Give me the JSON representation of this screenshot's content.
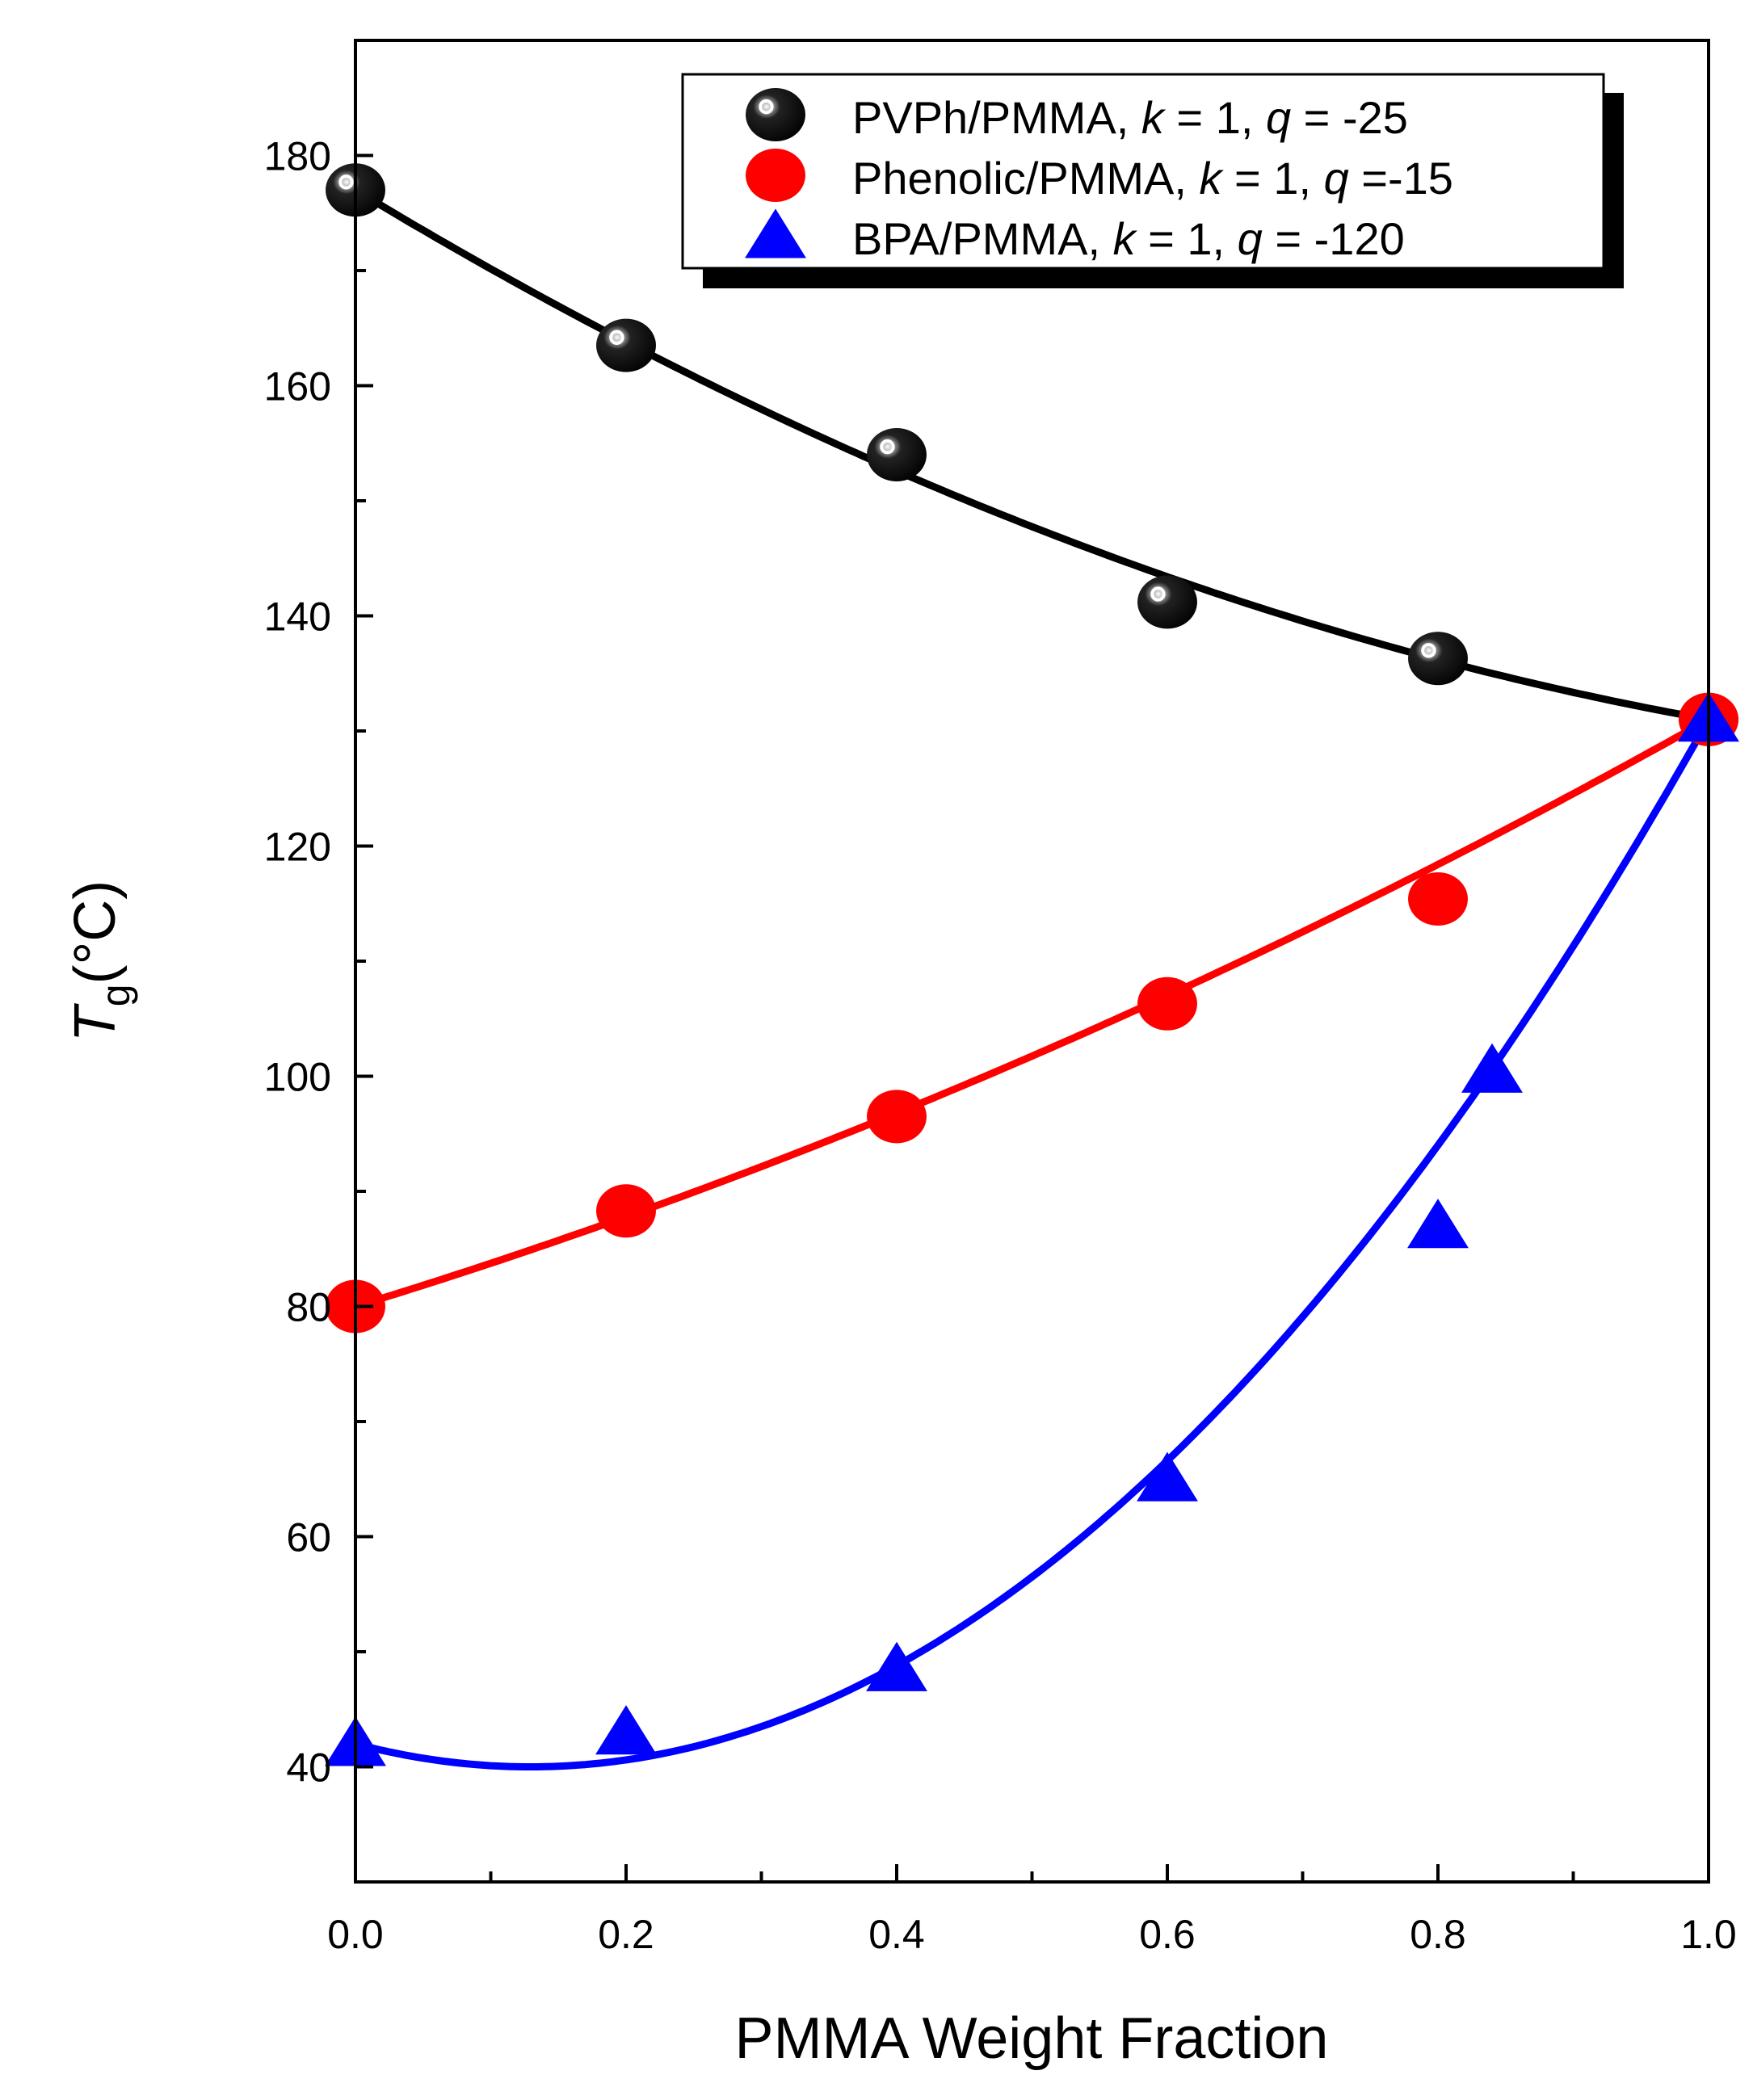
{
  "chart_data": {
    "type": "line",
    "xlabel": "PMMA Weight Fraction",
    "ylabel": {
      "T": "T",
      "g": "g",
      "unit": "(°C)"
    },
    "xlim": [
      0.0,
      1.0
    ],
    "ylim": [
      30,
      190
    ],
    "xticks": [
      "0.0",
      "0.2",
      "0.4",
      "0.6",
      "0.8",
      "1.0"
    ],
    "yticks": [
      "40",
      "60",
      "80",
      "100",
      "120",
      "140",
      "160",
      "180"
    ],
    "legend_position": "top-right",
    "grid": false,
    "series": [
      {
        "name": "PVPh/PMMA, k = 1, q = -25",
        "label_parts": {
          "prefix": "PVPh/PMMA, ",
          "k": "k",
          "mid": " = 1, ",
          "q": "q",
          "suffix": " = -25"
        },
        "marker": "sphere",
        "color": "#000000",
        "points": [
          {
            "x": 0.0,
            "y": 177
          },
          {
            "x": 0.2,
            "y": 163.5
          },
          {
            "x": 0.4,
            "y": 154
          },
          {
            "x": 0.6,
            "y": 141.2
          },
          {
            "x": 0.8,
            "y": 136.3
          },
          {
            "x": 1.0,
            "y": 131
          }
        ],
        "fit": {
          "k": 1,
          "q": -25,
          "tg1": 177,
          "tg2": 131
        }
      },
      {
        "name": "Phenolic/PMMA, k = 1, q =-15",
        "label_parts": {
          "prefix": "Phenolic/PMMA, ",
          "k": "k",
          "mid": " = 1, ",
          "q": "q",
          "suffix": " =-15"
        },
        "marker": "circle",
        "color": "#ff0000",
        "points": [
          {
            "x": 0.0,
            "y": 80
          },
          {
            "x": 0.2,
            "y": 88.3
          },
          {
            "x": 0.4,
            "y": 96.5
          },
          {
            "x": 0.6,
            "y": 106.3
          },
          {
            "x": 0.8,
            "y": 115.4
          },
          {
            "x": 1.0,
            "y": 131
          }
        ],
        "fit": {
          "k": 1,
          "q": -15,
          "tg1": 80,
          "tg2": 131
        }
      },
      {
        "name": "BPA/PMMA, k = 1, q = -120",
        "label_parts": {
          "prefix": "BPA/PMMA, ",
          "k": "k",
          "mid": " = 1, ",
          "q": "q",
          "suffix": " = -120"
        },
        "marker": "triangle",
        "color": "#0000ff",
        "points": [
          {
            "x": 0.0,
            "y": 42
          },
          {
            "x": 0.2,
            "y": 43
          },
          {
            "x": 0.4,
            "y": 48.5
          },
          {
            "x": 0.6,
            "y": 65
          },
          {
            "x": 0.8,
            "y": 87
          },
          {
            "x": 0.84,
            "y": 100.5
          },
          {
            "x": 1.0,
            "y": 131
          }
        ],
        "fit": {
          "k": 1,
          "q": -120,
          "tg1": 42,
          "tg2": 131
        }
      }
    ]
  }
}
